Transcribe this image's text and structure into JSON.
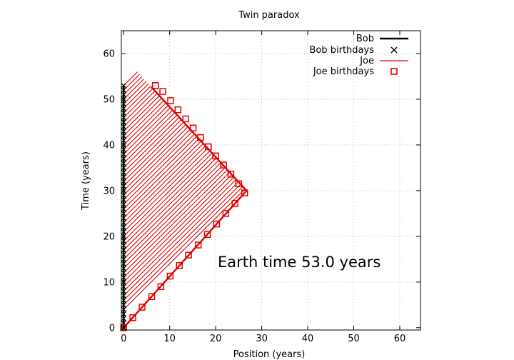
{
  "chart_data": {
    "type": "line",
    "title": "Twin paradox",
    "xlabel": "Position (years)",
    "ylabel": "Time (years)",
    "xlim": [
      -0.5,
      64.5
    ],
    "ylim": [
      -0.5,
      65
    ],
    "x_ticks": [
      0,
      10,
      20,
      30,
      40,
      50,
      60
    ],
    "y_ticks": [
      0,
      10,
      20,
      30,
      40,
      50,
      60
    ],
    "grid": true,
    "legend_position": "top-right",
    "annotation": "Earth time 53.0 years",
    "series": [
      {
        "name": "Bob",
        "style": "thick black line",
        "x": [
          0,
          0
        ],
        "y": [
          0,
          53
        ]
      },
      {
        "name": "Bob birthdays",
        "style": "black x markers",
        "x": [
          0,
          0,
          0,
          0,
          0,
          0,
          0,
          0,
          0,
          0,
          0,
          0,
          0,
          0,
          0,
          0,
          0,
          0,
          0,
          0,
          0,
          0,
          0,
          0,
          0,
          0,
          0,
          0,
          0,
          0,
          0,
          0,
          0,
          0,
          0,
          0,
          0,
          0,
          0,
          0,
          0,
          0,
          0,
          0,
          0,
          0,
          0,
          0,
          0,
          0,
          0,
          0,
          0,
          0
        ],
        "y": [
          0,
          1,
          2,
          3,
          4,
          5,
          6,
          7,
          8,
          9,
          10,
          11,
          12,
          13,
          14,
          15,
          16,
          17,
          18,
          19,
          20,
          21,
          22,
          23,
          24,
          25,
          26,
          27,
          28,
          29,
          30,
          31,
          32,
          33,
          34,
          35,
          36,
          37,
          38,
          39,
          40,
          41,
          42,
          43,
          44,
          45,
          46,
          47,
          48,
          49,
          50,
          51,
          52,
          53
        ]
      },
      {
        "name": "Joe",
        "style": "red line",
        "x": [
          0,
          26.7,
          6
        ],
        "y": [
          0,
          30,
          52.7
        ]
      },
      {
        "name": "Joe birthdays",
        "style": "red open squares",
        "x": [
          0,
          2.0,
          4.0,
          6.1,
          8.1,
          10.1,
          12.1,
          14.1,
          16.2,
          18.2,
          20.2,
          22.2,
          24.2,
          26.3,
          25.0,
          23.3,
          21.7,
          20.0,
          18.4,
          16.7,
          15.1,
          13.5,
          11.8,
          10.2,
          8.5,
          6.9
        ],
        "y": [
          0,
          2.2,
          4.5,
          6.8,
          9.0,
          11.3,
          13.6,
          15.9,
          18.1,
          20.4,
          22.7,
          25.0,
          27.2,
          29.5,
          31.5,
          33.6,
          35.6,
          37.6,
          39.6,
          41.6,
          43.7,
          45.7,
          47.7,
          49.7,
          51.7,
          53.0
        ]
      }
    ]
  }
}
